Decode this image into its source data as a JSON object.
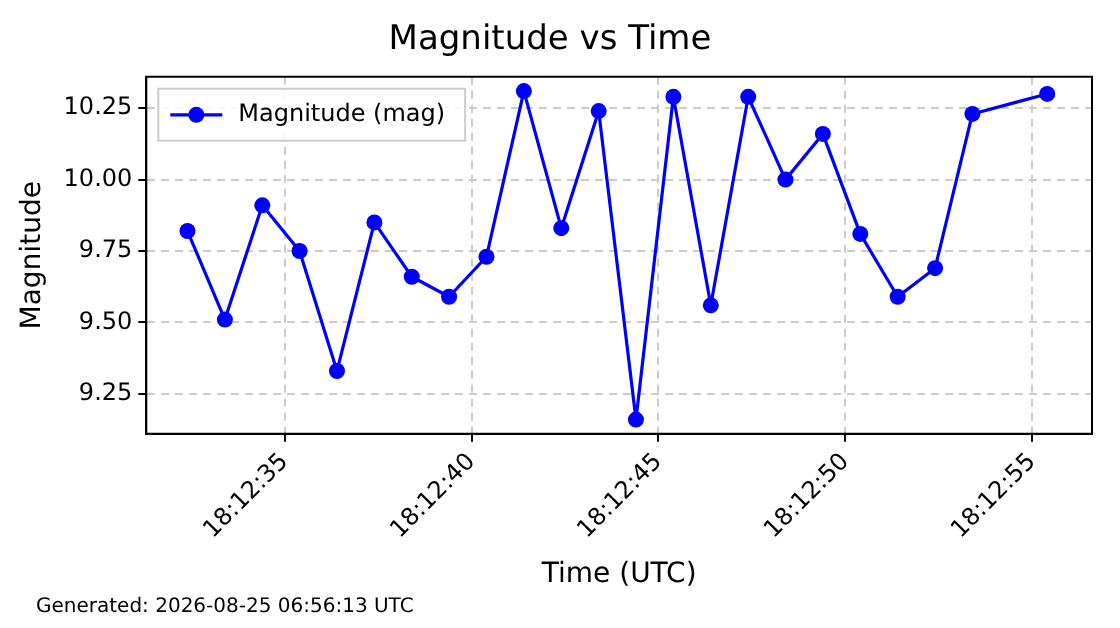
{
  "chart_data": {
    "type": "line",
    "title": "Magnitude vs Time",
    "xlabel": "Time (UTC)",
    "ylabel": "Magnitude",
    "x": [
      18.209,
      18.209278,
      18.209556,
      18.209833,
      18.210111,
      18.210389,
      18.210667,
      18.210944,
      18.211222,
      18.2115,
      18.211778,
      18.212056,
      18.212333,
      18.212611,
      18.212889,
      18.213167,
      18.213444,
      18.213722,
      18.214,
      18.214278,
      18.214556,
      18.214833,
      18.215389
    ],
    "series": [
      {
        "name": "Magnitude (mag)",
        "color": "#0000ff",
        "values": [
          9.82,
          9.51,
          9.91,
          9.75,
          9.33,
          9.85,
          9.66,
          9.59,
          9.73,
          10.31,
          9.83,
          10.24,
          9.16,
          10.29,
          9.56,
          10.29,
          10.0,
          10.16,
          9.81,
          9.59,
          9.69,
          10.23,
          10.3
        ]
      }
    ],
    "xlim": [
      18.208694,
      18.215722
    ],
    "xticks": [
      {
        "value": 18.209722,
        "label": "18:12:35"
      },
      {
        "value": 18.211111,
        "label": "18:12:40"
      },
      {
        "value": 18.2125,
        "label": "18:12:45"
      },
      {
        "value": 18.213889,
        "label": "18:12:50"
      },
      {
        "value": 18.215278,
        "label": "18:12:55"
      }
    ],
    "ylim": [
      9.11,
      10.36
    ],
    "yticks": [
      {
        "value": 9.25,
        "label": "9.25"
      },
      {
        "value": 9.5,
        "label": "9.50"
      },
      {
        "value": 9.75,
        "label": "9.75"
      },
      {
        "value": 10.0,
        "label": "10.00"
      },
      {
        "value": 10.25,
        "label": "10.25"
      }
    ],
    "grid": true,
    "legend": "top left",
    "marker": "circle",
    "line_style": "solid",
    "annotations": [
      "Generated: 2026-08-25 06:56:13 UTC"
    ]
  }
}
